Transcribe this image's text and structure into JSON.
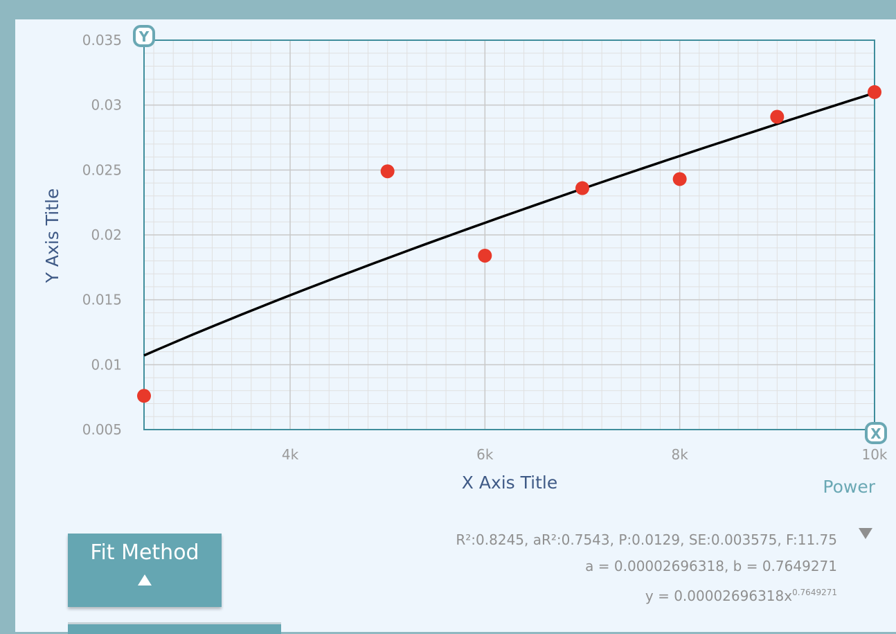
{
  "chart_data": {
    "type": "scatter",
    "xlabel": "X Axis Title",
    "ylabel": "Y Axis Title",
    "xlim": [
      2500,
      10000
    ],
    "ylim": [
      0.005,
      0.035
    ],
    "xticks": [
      4000,
      6000,
      8000,
      10000
    ],
    "xtick_labels": [
      "4k",
      "6k",
      "8k",
      "10k"
    ],
    "yticks": [
      0.005,
      0.01,
      0.015,
      0.02,
      0.025,
      0.03,
      0.035
    ],
    "ytick_labels": [
      "0.005",
      "0.01",
      "0.015",
      "0.02",
      "0.025",
      "0.03",
      "0.035"
    ],
    "grid": true,
    "points": [
      {
        "x": 2500,
        "y": 0.0076
      },
      {
        "x": 5000,
        "y": 0.0249
      },
      {
        "x": 6000,
        "y": 0.0184
      },
      {
        "x": 7000,
        "y": 0.0236
      },
      {
        "x": 8000,
        "y": 0.0243
      },
      {
        "x": 9000,
        "y": 0.0291
      },
      {
        "x": 10000,
        "y": 0.031
      }
    ],
    "fit": {
      "model": "power",
      "a": 2.696318e-05,
      "b": 0.7649271,
      "x_range": [
        2500,
        10000
      ]
    },
    "colors": {
      "points": "#e8392a",
      "fit_line": "#000000",
      "grid_major": "#c8c8c8",
      "grid_minor": "#e0e0e0",
      "frame": "#3f8d9c",
      "axis_title": "#3f5a86"
    }
  },
  "fit_panel": {
    "method_name": "Power",
    "stats_line": "R²:0.8245, aR²:0.7543, P:0.0129, SE:0.003575, F:11.75",
    "params_line": "a = 0.00002696318, b = 0.7649271",
    "equation_base": "y = 0.00002696318x",
    "equation_exponent": "0.7649271",
    "toggle_icon": "triangle-down-icon"
  },
  "controls": {
    "fit_method_label": "Fit Method",
    "fit_method_icon": "triangle-up-icon",
    "y_axis_badge": "Y",
    "x_axis_badge": "X"
  }
}
